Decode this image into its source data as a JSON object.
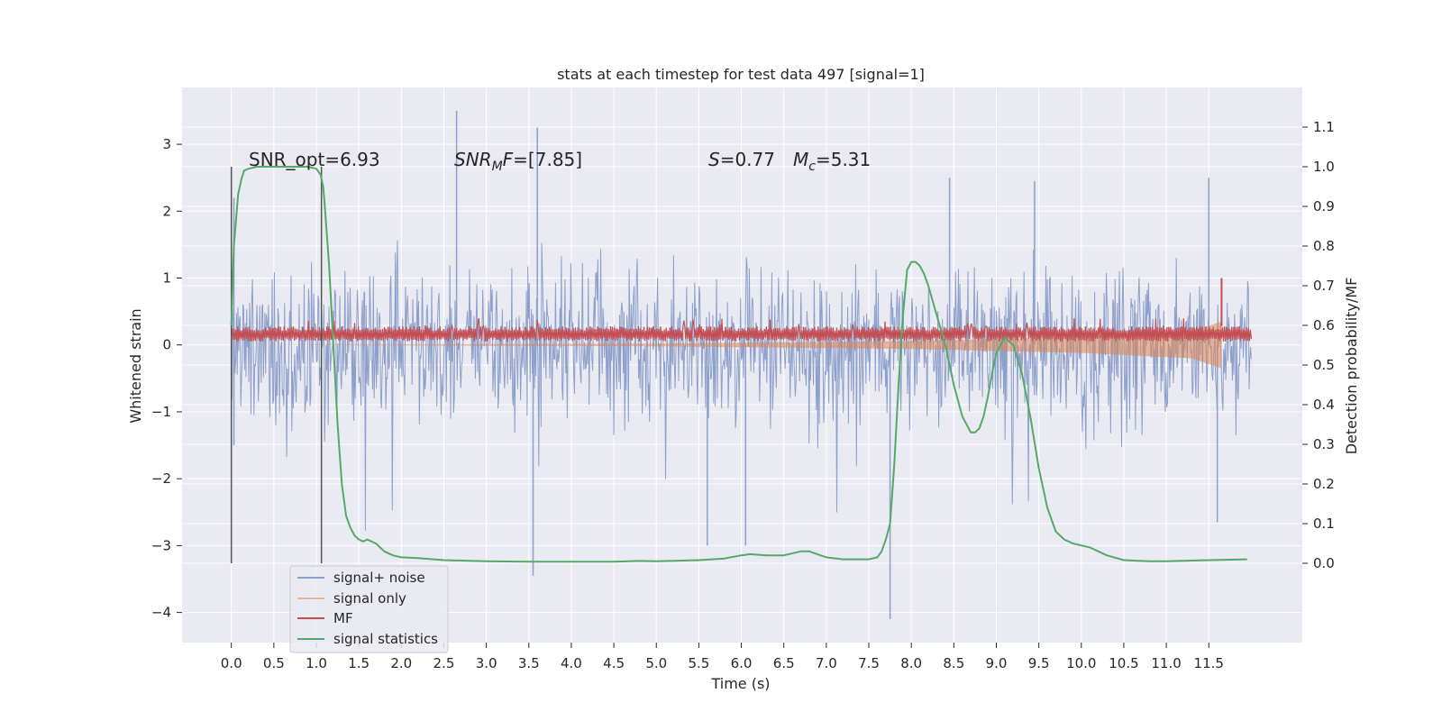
{
  "chart_data": {
    "type": "line",
    "title": "stats at each timestep for test data 497 [signal=1]",
    "xlabel": "Time (s)",
    "ylabel": "Whitened strain",
    "ylabel_right": "Detection probability/MF",
    "xlim": [
      -0.58,
      12.6
    ],
    "ylim": [
      -4.45,
      3.85
    ],
    "ylim_right": [
      -0.2,
      1.2
    ],
    "grid": true,
    "x_ticks": [
      "0.0",
      "0.5",
      "1.0",
      "1.5",
      "2.0",
      "2.5",
      "3.0",
      "3.5",
      "4.0",
      "4.5",
      "5.0",
      "5.5",
      "6.0",
      "6.5",
      "7.0",
      "7.5",
      "8.0",
      "8.5",
      "9.0",
      "9.5",
      "10.0",
      "10.5",
      "11.0",
      "11.5"
    ],
    "y_ticks": [
      "3",
      "2",
      "1",
      "0",
      "−1",
      "−2",
      "−3",
      "−4"
    ],
    "y_ticks_right": [
      "1.1",
      "1.0",
      "0.9",
      "0.8",
      "0.7",
      "0.6",
      "0.5",
      "0.4",
      "0.3",
      "0.2",
      "0.1",
      "0.0"
    ],
    "annotations": {
      "snr_opt": "SNR_opt=6.93",
      "snr_mf_var": "SNR",
      "snr_mf_sub": "M",
      "snr_mf_var2": "F",
      "snr_mf_val": "=[7.85]",
      "s_var": "S",
      "s_val": "=0.77",
      "mc_var": "M",
      "mc_sub": "c",
      "mc_val": "=5.31"
    },
    "vlines": [
      0.0,
      1.06
    ],
    "legend": {
      "placement": "lower-left",
      "entries": [
        "signal+ noise",
        "signal only",
        "MF",
        "signal statistics"
      ]
    },
    "colors": {
      "signal_noise": "#8da0cb",
      "signal_only": "#dd8452",
      "mf": "#c44e52",
      "statistics": "#55a868",
      "vline": "#555555",
      "background": "#eaeaf2"
    },
    "series": [
      {
        "name": "signal+ noise",
        "axis": "left",
        "x_range": [
          0,
          12
        ],
        "envelope_typical": [
          -1.5,
          1.5
        ],
        "outliers": [
          [
            0.03,
            2.2
          ],
          [
            0.03,
            -1.5
          ],
          [
            2.65,
            3.5
          ],
          [
            3.6,
            3.25
          ],
          [
            3.55,
            -3.45
          ],
          [
            7.75,
            -4.1
          ],
          [
            8.45,
            2.5
          ],
          [
            6.05,
            -3.0
          ],
          [
            5.6,
            -3.0
          ],
          [
            11.5,
            2.5
          ],
          [
            11.6,
            -2.65
          ],
          [
            9.45,
            2.45
          ]
        ]
      },
      {
        "name": "signal only",
        "axis": "left",
        "x_range": [
          0,
          11.65
        ],
        "description_points": [
          [
            0,
            0.0
          ],
          [
            5,
            0.02
          ],
          [
            8,
            0.06
          ],
          [
            10,
            0.12
          ],
          [
            11.3,
            0.2
          ],
          [
            11.65,
            0.35
          ]
        ]
      },
      {
        "name": "MF",
        "axis": "left",
        "x_range": [
          0,
          12
        ],
        "band": [
          0.05,
          0.28
        ],
        "peak": [
          11.65,
          1.0
        ]
      },
      {
        "name": "signal statistics",
        "axis": "right",
        "x": [
          0.0,
          0.03,
          0.08,
          0.12,
          0.15,
          0.2,
          0.3,
          0.4,
          0.6,
          0.8,
          0.9,
          1.0,
          1.05,
          1.08,
          1.1,
          1.15,
          1.2,
          1.25,
          1.3,
          1.35,
          1.4,
          1.45,
          1.5,
          1.55,
          1.6,
          1.7,
          1.8,
          1.9,
          2.0,
          2.2,
          2.5,
          3.0,
          3.5,
          4.0,
          4.5,
          4.8,
          5.0,
          5.5,
          5.8,
          6.0,
          6.1,
          6.3,
          6.5,
          6.7,
          6.8,
          7.0,
          7.2,
          7.5,
          7.6,
          7.65,
          7.7,
          7.75,
          7.8,
          7.85,
          7.9,
          7.95,
          8.0,
          8.05,
          8.1,
          8.15,
          8.2,
          8.4,
          8.5,
          8.6,
          8.7,
          8.75,
          8.8,
          8.85,
          8.9,
          8.95,
          9.0,
          9.1,
          9.2,
          9.3,
          9.4,
          9.5,
          9.6,
          9.7,
          9.8,
          9.9,
          10.0,
          10.1,
          10.2,
          10.3,
          10.5,
          10.8,
          11.0,
          11.5,
          11.95
        ],
        "y": [
          0.6,
          0.8,
          0.93,
          0.97,
          0.99,
          0.995,
          1.0,
          1.0,
          1.0,
          1.0,
          1.0,
          0.995,
          0.98,
          0.95,
          0.9,
          0.75,
          0.55,
          0.35,
          0.2,
          0.12,
          0.09,
          0.07,
          0.06,
          0.055,
          0.06,
          0.05,
          0.03,
          0.02,
          0.015,
          0.013,
          0.008,
          0.005,
          0.004,
          0.004,
          0.004,
          0.006,
          0.005,
          0.008,
          0.012,
          0.02,
          0.023,
          0.02,
          0.02,
          0.03,
          0.03,
          0.015,
          0.01,
          0.01,
          0.015,
          0.03,
          0.06,
          0.1,
          0.25,
          0.45,
          0.62,
          0.74,
          0.76,
          0.76,
          0.75,
          0.73,
          0.7,
          0.55,
          0.45,
          0.37,
          0.33,
          0.33,
          0.34,
          0.37,
          0.42,
          0.48,
          0.53,
          0.57,
          0.55,
          0.48,
          0.37,
          0.24,
          0.14,
          0.08,
          0.06,
          0.05,
          0.045,
          0.04,
          0.03,
          0.02,
          0.008,
          0.005,
          0.005,
          0.008,
          0.01
        ]
      }
    ]
  }
}
